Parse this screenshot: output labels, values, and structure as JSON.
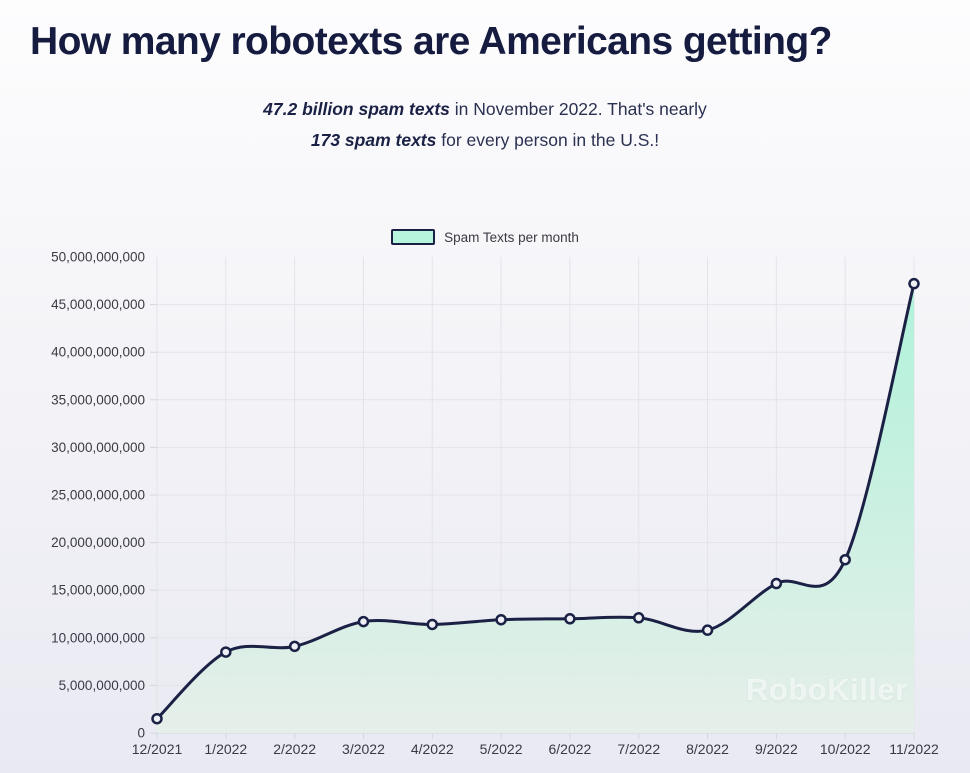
{
  "page": {
    "title": "How many robotexts are Americans getting?",
    "subtitle": {
      "line1_bold": "47.2 billion spam texts",
      "line1_rest": " in November 2022. That's nearly",
      "line2_bold": "173 spam texts",
      "line2_rest": " for every person in the U.S.!"
    },
    "watermark": "RoboKiller"
  },
  "legend": {
    "label": "Spam Texts per month"
  },
  "chart_data": {
    "type": "area",
    "title": "How many robotexts are Americans getting?",
    "categories": [
      "12/2021",
      "1/2022",
      "2/2022",
      "3/2022",
      "4/2022",
      "5/2022",
      "6/2022",
      "7/2022",
      "8/2022",
      "9/2022",
      "10/2022",
      "11/2022"
    ],
    "series": [
      {
        "name": "Spam Texts per month",
        "values": [
          1500000000,
          8500000000,
          9100000000,
          11700000000,
          11400000000,
          11900000000,
          12000000000,
          12100000000,
          10800000000,
          15700000000,
          18200000000,
          47200000000
        ]
      }
    ],
    "xlabel": "",
    "ylabel": "",
    "ylim": [
      0,
      50000000000
    ],
    "ytick_step": 5000000000,
    "ytick_labels": [
      "0",
      "5,000,000,000",
      "10,000,000,000",
      "15,000,000,000",
      "20,000,000,000",
      "25,000,000,000",
      "30,000,000,000",
      "35,000,000,000",
      "40,000,000,000",
      "45,000,000,000",
      "50,000,000,000"
    ],
    "grid": true,
    "legend_position": "top",
    "line_smooth": true,
    "colors": {
      "line": "#1b2145",
      "point_fill": "#eef0f6",
      "area_top": "#a6f2d6",
      "area_bottom": "#e6efe9",
      "grid": "#e3e3ea",
      "axis": "#d6d6df",
      "tick_text": "#3a3a44",
      "legend_swatch": "#b7f5dc"
    }
  }
}
